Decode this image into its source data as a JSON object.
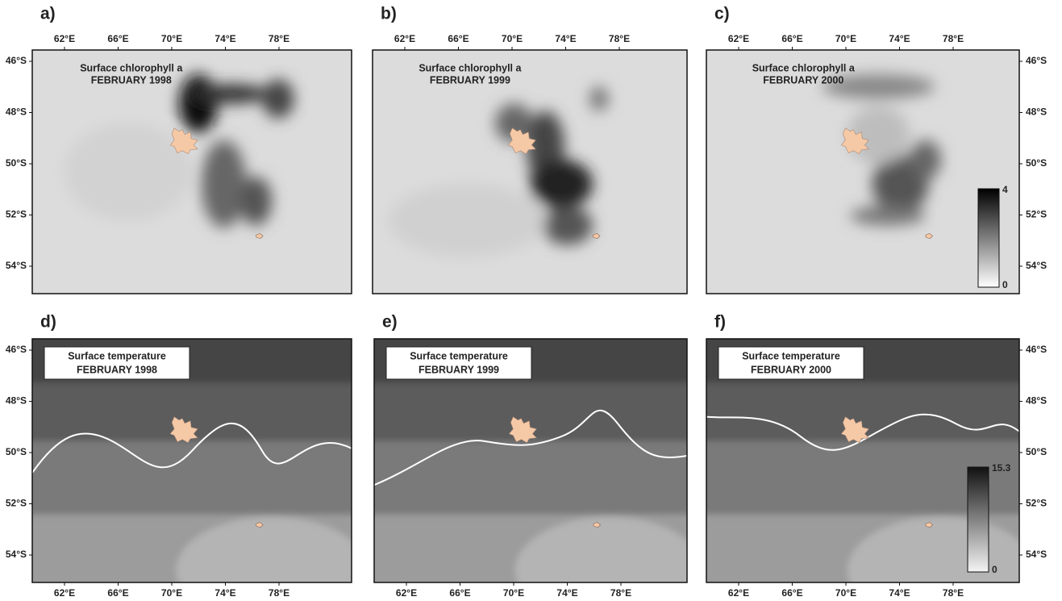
{
  "panels": [
    {
      "label": "a)",
      "title": [
        "Surface chlorophyll a",
        "FEBRUARY 1998"
      ]
    },
    {
      "label": "b)",
      "title": [
        "Surface chlorophyll a",
        "FEBRUARY 1999"
      ]
    },
    {
      "label": "c)",
      "title": [
        "Surface chlorophyll a",
        "FEBRUARY 2000"
      ]
    },
    {
      "label": "d)",
      "title": [
        "Surface temperature",
        "FEBRUARY 1998"
      ]
    },
    {
      "label": "e)",
      "title": [
        "Surface temperature",
        "FEBRUARY 1999"
      ]
    },
    {
      "label": "f)",
      "title": [
        "Surface temperature",
        "FEBRUARY 2000"
      ]
    }
  ],
  "longitude_ticks": [
    "62°E",
    "66°E",
    "70°E",
    "74°E",
    "78°E"
  ],
  "latitude_ticks": [
    "46°S",
    "48°S",
    "50°S",
    "52°S",
    "54°S"
  ],
  "colorbars": [
    {
      "max": 4,
      "min": 0
    },
    {
      "max": 15.3,
      "min": 0
    }
  ]
}
